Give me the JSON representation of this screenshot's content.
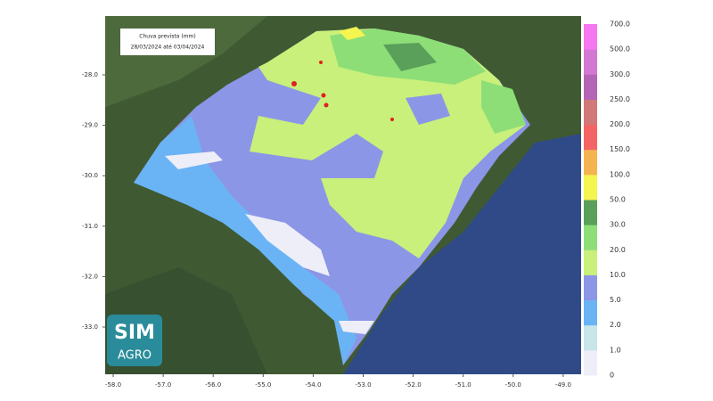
{
  "map": {
    "title": "Chuva prevista (mm)",
    "period": "28/03/2024 até 03/04/2024",
    "x_axis_labels": [
      "-58.0",
      "-57.0",
      "-56.0",
      "-55.0",
      "-54.0",
      "-53.0",
      "-52.0",
      "-51.0",
      "-50.0",
      "-49.0"
    ],
    "y_axis_labels": [
      "-28.0",
      "-29.0",
      "-30.0",
      "-31.0",
      "-32.0",
      "-33.0"
    ],
    "legend": {
      "labels": [
        "0",
        "1.0",
        "2.0",
        "5.0",
        "10.0",
        "20.0",
        "30.0",
        "50.0",
        "100.0",
        "150.0",
        "200.0",
        "250.0",
        "300.0",
        "500.0",
        "700.0"
      ],
      "colors": [
        "#eeeef8",
        "#c8e6ea",
        "#6ab4f5",
        "#8c96e6",
        "#c8f07a",
        "#8ede78",
        "#5aa05a",
        "#f5f550",
        "#f5b450",
        "#f56464",
        "#d27878",
        "#b464b4",
        "#d278d2",
        "#f578f0"
      ]
    },
    "logo": {
      "top": "SIM",
      "bottom": "AGRO"
    }
  }
}
